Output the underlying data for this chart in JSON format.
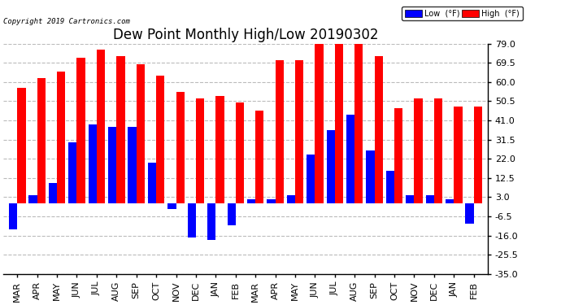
{
  "title": "Dew Point Monthly High/Low 20190302",
  "copyright": "Copyright 2019 Cartronics.com",
  "months": [
    "MAR",
    "APR",
    "MAY",
    "JUN",
    "JUL",
    "AUG",
    "SEP",
    "OCT",
    "NOV",
    "DEC",
    "JAN",
    "FEB",
    "MAR",
    "APR",
    "MAY",
    "JUN",
    "JUL",
    "AUG",
    "SEP",
    "OCT",
    "NOV",
    "DEC",
    "JAN",
    "FEB"
  ],
  "high_values": [
    57,
    62,
    65,
    72,
    76,
    73,
    69,
    63,
    55,
    52,
    53,
    50,
    46,
    71,
    71,
    79,
    79,
    79,
    73,
    47,
    52,
    52,
    48,
    48
  ],
  "low_values": [
    -13,
    4,
    10,
    30,
    39,
    38,
    38,
    20,
    -3,
    -17,
    -18,
    -11,
    2,
    2,
    4,
    24,
    36,
    44,
    26,
    16,
    4,
    4,
    2,
    -10
  ],
  "high_color": "#ff0000",
  "low_color": "#0000ff",
  "background_color": "#ffffff",
  "grid_color": "#bbbbbb",
  "ylim_min": -35,
  "ylim_max": 79,
  "yticks": [
    -35.0,
    -25.5,
    -16.0,
    -6.5,
    3.0,
    12.5,
    22.0,
    31.5,
    41.0,
    50.5,
    60.0,
    69.5,
    79.0
  ],
  "title_fontsize": 12,
  "tick_fontsize": 8,
  "bar_width": 0.42,
  "fig_width": 6.9,
  "fig_height": 3.75
}
